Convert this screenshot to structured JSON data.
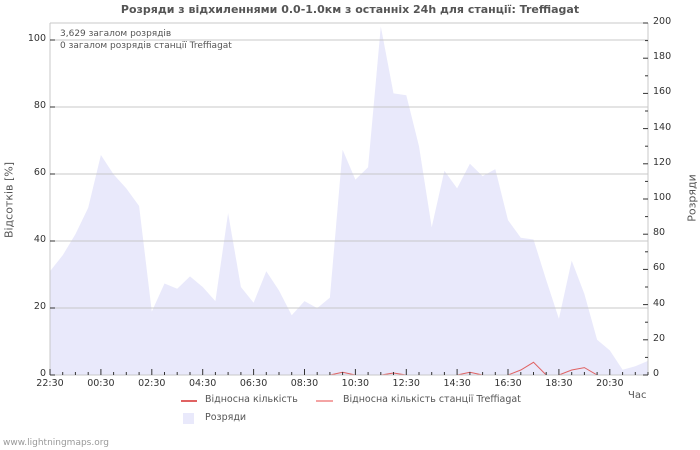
{
  "title": "Розряди з відхиленнями 0.0-1.0км з останніх 24h для станції: Treffiagat",
  "annotations": {
    "total_strikes": "3,629 загалом розрядів",
    "station_strikes": "0 загалом розрядів станції Treffiagat"
  },
  "axes": {
    "left_title": "Відсотків  [%]",
    "right_title": "Розряди",
    "x_title": "Час"
  },
  "legend": [
    {
      "label": "Відносна кількість",
      "color": "#e06262",
      "kind": "line"
    },
    {
      "label": "Відносна кількість станції Treffiagat",
      "color": "#f4a4a4",
      "kind": "line"
    },
    {
      "label": "Розряди",
      "color": "#e9e9fb",
      "kind": "area"
    }
  ],
  "footer": "www.lightningmaps.org",
  "colors": {
    "grid": "#c8c8c8",
    "axis": "#c8c8c8",
    "tick": "#333333",
    "area": "#e9e9fb"
  },
  "chart_data": {
    "type": "area",
    "title": "Розряди з відхиленнями 0.0-1.0км з останніх 24h для станції: Treffiagat",
    "xlabel": "Час",
    "ylabel": "Відсотків [%]",
    "ylabel_right": "Розряди",
    "ylim": [
      0,
      105
    ],
    "ylim_right": [
      0,
      200
    ],
    "left_ticks": [
      0,
      20,
      40,
      60,
      80,
      100
    ],
    "right_ticks": [
      0,
      20,
      40,
      60,
      80,
      100,
      120,
      140,
      160,
      180,
      200
    ],
    "x_tick_labels": [
      "22:30",
      "00:30",
      "02:30",
      "04:30",
      "06:30",
      "08:30",
      "10:30",
      "12:30",
      "14:30",
      "16:30",
      "18:30",
      "20:30"
    ],
    "x_tick_every": 4,
    "grid": true,
    "legend_position": "bottom",
    "x": [
      "22:30",
      "23:00",
      "23:30",
      "00:00",
      "00:30",
      "01:00",
      "01:30",
      "02:00",
      "02:30",
      "03:00",
      "03:30",
      "04:00",
      "04:30",
      "05:00",
      "05:30",
      "06:00",
      "06:30",
      "07:00",
      "07:30",
      "08:00",
      "08:30",
      "09:00",
      "09:30",
      "10:00",
      "10:30",
      "11:00",
      "11:30",
      "12:00",
      "12:30",
      "13:00",
      "13:30",
      "14:00",
      "14:30",
      "15:00",
      "15:30",
      "16:00",
      "16:30",
      "17:00",
      "17:30",
      "18:00",
      "18:30",
      "19:00",
      "19:30",
      "20:00",
      "20:30",
      "21:00",
      "21:30",
      "22:00"
    ],
    "series": [
      {
        "name": "Розряди",
        "axis": "right",
        "kind": "area",
        "values": [
          59,
          68,
          80,
          95,
          125,
          114,
          106,
          96,
          36,
          52,
          49,
          56,
          50,
          42,
          92,
          50,
          41,
          59,
          48,
          34,
          42,
          38,
          44,
          128,
          111,
          118,
          198,
          160,
          159,
          130,
          84,
          116,
          106,
          120,
          113,
          117,
          88,
          78,
          77,
          54,
          32,
          65,
          46,
          20,
          14,
          3,
          5,
          8
        ]
      },
      {
        "name": "Відносна кількість",
        "axis": "left",
        "kind": "line",
        "values": [
          0,
          0,
          0,
          0,
          0,
          0,
          0,
          0,
          0,
          0,
          0,
          0,
          0,
          0,
          0,
          0,
          0,
          0,
          0,
          0,
          0,
          0,
          0,
          0.8,
          0,
          0,
          0,
          0.6,
          0,
          0,
          0,
          0,
          0,
          0.8,
          0,
          0,
          0,
          1.5,
          3.8,
          0,
          0,
          1.5,
          2.2,
          0,
          0,
          0,
          0,
          0
        ]
      },
      {
        "name": "Відносна кількість станції Treffiagat",
        "axis": "left",
        "kind": "line",
        "values": [
          0,
          0,
          0,
          0,
          0,
          0,
          0,
          0,
          0,
          0,
          0,
          0,
          0,
          0,
          0,
          0,
          0,
          0,
          0,
          0,
          0,
          0,
          0,
          0,
          0,
          0,
          0,
          0,
          0,
          0,
          0,
          0,
          0,
          0,
          0,
          0,
          0,
          0,
          0,
          0,
          0,
          0,
          0,
          0,
          0,
          0,
          0,
          0
        ]
      }
    ]
  }
}
